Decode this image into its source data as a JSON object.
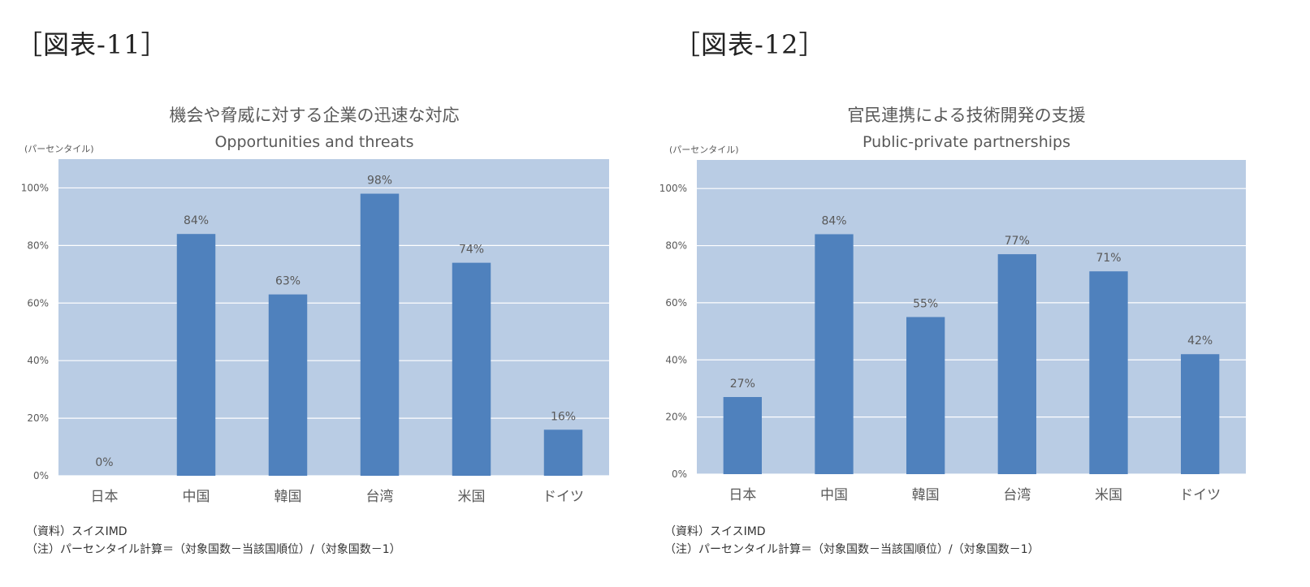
{
  "colors": {
    "plot_bg": "#b9cce4",
    "bar": "#4f81bd",
    "grid": "#ffffff",
    "text": "#595959"
  },
  "chart_data": [
    {
      "type": "bar",
      "figure_label": "［図表-11］",
      "title": "機会や脅威に対する企業の迅速な対応",
      "subtitle": "Opportunities and threats",
      "unit_label": "(パーセンタイル)",
      "categories": [
        "日本",
        "中国",
        "韓国",
        "台湾",
        "米国",
        "ドイツ"
      ],
      "values": [
        0,
        84,
        63,
        98,
        74,
        16
      ],
      "data_labels": [
        "0%",
        "84%",
        "63%",
        "98%",
        "74%",
        "16%"
      ],
      "yticks": [
        "0%",
        "20%",
        "40%",
        "60%",
        "80%",
        "100%"
      ],
      "ylim": [
        0,
        110
      ],
      "grid": true,
      "notes": [
        "（資料）スイスIMD",
        "（注）パーセンタイル計算＝（対象国数－当該国順位）/（対象国数－1）"
      ]
    },
    {
      "type": "bar",
      "figure_label": "［図表-12］",
      "title": "官民連携による技術開発の支援",
      "subtitle": "Public-private partnerships",
      "unit_label": "(パーセンタイル)",
      "categories": [
        "日本",
        "中国",
        "韓国",
        "台湾",
        "米国",
        "ドイツ"
      ],
      "values": [
        27,
        84,
        55,
        77,
        71,
        42
      ],
      "data_labels": [
        "27%",
        "84%",
        "55%",
        "77%",
        "71%",
        "42%"
      ],
      "yticks": [
        "0%",
        "20%",
        "40%",
        "60%",
        "80%",
        "100%"
      ],
      "ylim": [
        0,
        110
      ],
      "grid": true,
      "notes": [
        "（資料）スイスIMD",
        "（注）パーセンタイル計算＝（対象国数－当該国順位）/（対象国数－1）"
      ]
    }
  ]
}
